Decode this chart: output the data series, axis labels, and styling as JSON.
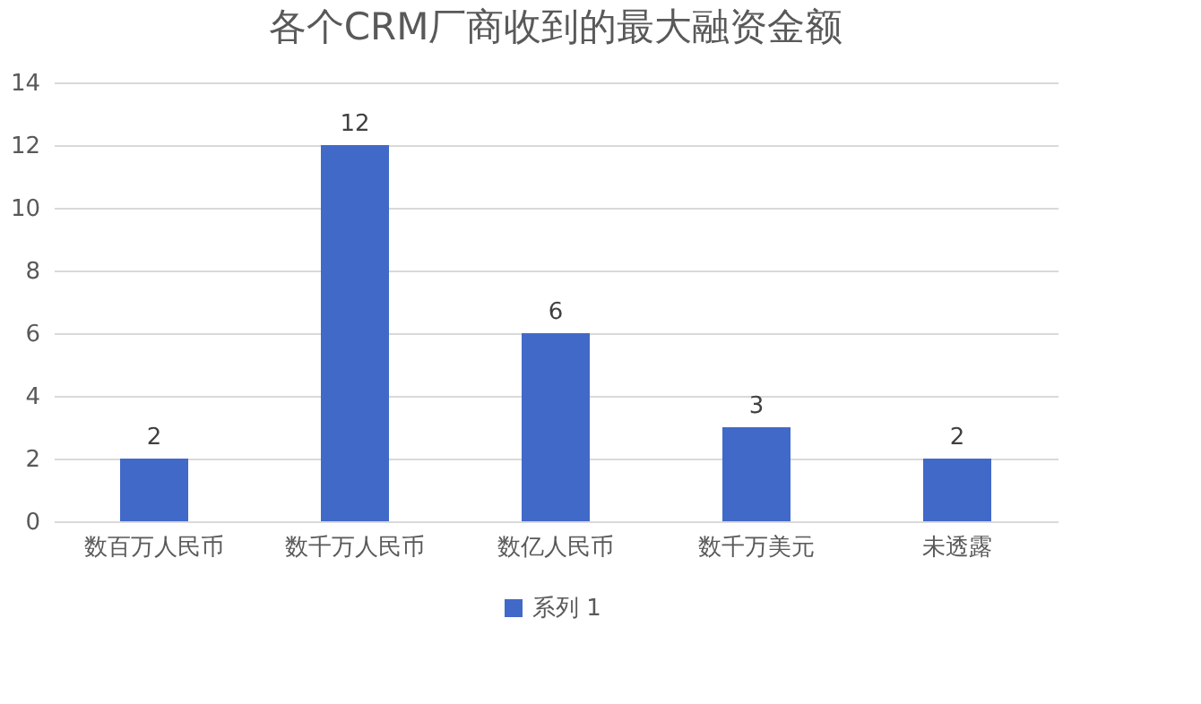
{
  "chart_data": {
    "type": "bar",
    "title": "各个CRM厂商收到的最大融资金额",
    "categories": [
      "数百万人民币",
      "数千万人民币",
      "数亿人民币",
      "数千万美元",
      "未透露"
    ],
    "series": [
      {
        "name": "系列 1",
        "color": "#4169c8",
        "values": [
          2,
          12,
          6,
          3,
          2
        ]
      }
    ],
    "ylim": [
      0,
      14
    ],
    "yticks": [
      0,
      2,
      4,
      6,
      8,
      10,
      12,
      14
    ],
    "grid": "y",
    "legend": "bottom",
    "data_labels": true
  }
}
